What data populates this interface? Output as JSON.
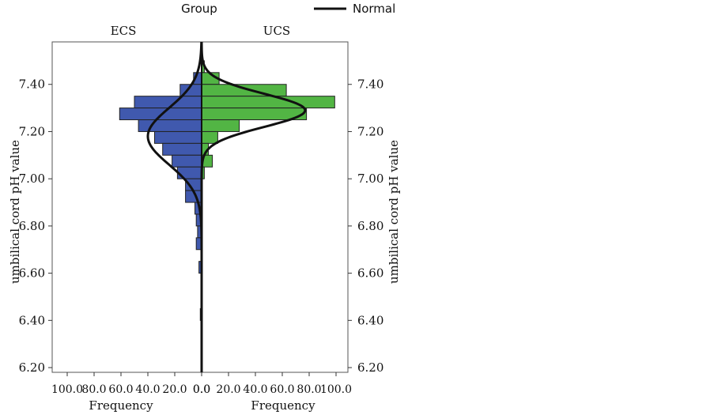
{
  "chart_data": {
    "type": "population-pyramid-histogram",
    "legend": {
      "title": "Group",
      "line_label": "Normal",
      "placement": "top-right"
    },
    "groups": [
      "ECS",
      "UCS"
    ],
    "ylabel": "umbilical cord pH value",
    "xlabel": "Frequency",
    "ylim": [
      6.18,
      7.58
    ],
    "y_ticks": [
      "6.20",
      "6.40",
      "6.60",
      "6.80",
      "7.00",
      "7.20",
      "7.40"
    ],
    "x_ticks_left": [
      "100.0",
      "80.0",
      "60.0",
      "40.0",
      "20.0",
      "0.0"
    ],
    "x_ticks_right": [
      "0.0",
      "20.0",
      "40.0",
      "60.0",
      "80.0",
      "100.0"
    ],
    "bin_width": 0.05,
    "series": [
      {
        "name": "ECS",
        "color": "#4059ae",
        "bins": [
          {
            "bin_start": 7.4,
            "value": 6
          },
          {
            "bin_start": 7.35,
            "value": 16
          },
          {
            "bin_start": 7.3,
            "value": 50
          },
          {
            "bin_start": 7.25,
            "value": 61
          },
          {
            "bin_start": 7.2,
            "value": 47
          },
          {
            "bin_start": 7.15,
            "value": 35
          },
          {
            "bin_start": 7.1,
            "value": 29
          },
          {
            "bin_start": 7.05,
            "value": 22
          },
          {
            "bin_start": 7.0,
            "value": 18
          },
          {
            "bin_start": 6.95,
            "value": 12
          },
          {
            "bin_start": 6.9,
            "value": 12
          },
          {
            "bin_start": 6.85,
            "value": 5
          },
          {
            "bin_start": 6.8,
            "value": 4
          },
          {
            "bin_start": 6.75,
            "value": 3
          },
          {
            "bin_start": 6.7,
            "value": 4
          },
          {
            "bin_start": 6.6,
            "value": 2
          },
          {
            "bin_start": 6.4,
            "value": 1
          }
        ],
        "normal": {
          "mean": 7.18,
          "sd": 0.12,
          "peak": 40
        }
      },
      {
        "name": "UCS",
        "color": "#52b544",
        "bins": [
          {
            "bin_start": 7.45,
            "value": 2
          },
          {
            "bin_start": 7.4,
            "value": 13
          },
          {
            "bin_start": 7.35,
            "value": 63
          },
          {
            "bin_start": 7.3,
            "value": 99
          },
          {
            "bin_start": 7.25,
            "value": 78
          },
          {
            "bin_start": 7.2,
            "value": 28
          },
          {
            "bin_start": 7.15,
            "value": 12
          },
          {
            "bin_start": 7.1,
            "value": 5
          },
          {
            "bin_start": 7.05,
            "value": 8
          },
          {
            "bin_start": 7.0,
            "value": 2
          }
        ],
        "normal": {
          "mean": 7.29,
          "sd": 0.07,
          "peak": 77
        }
      }
    ]
  }
}
